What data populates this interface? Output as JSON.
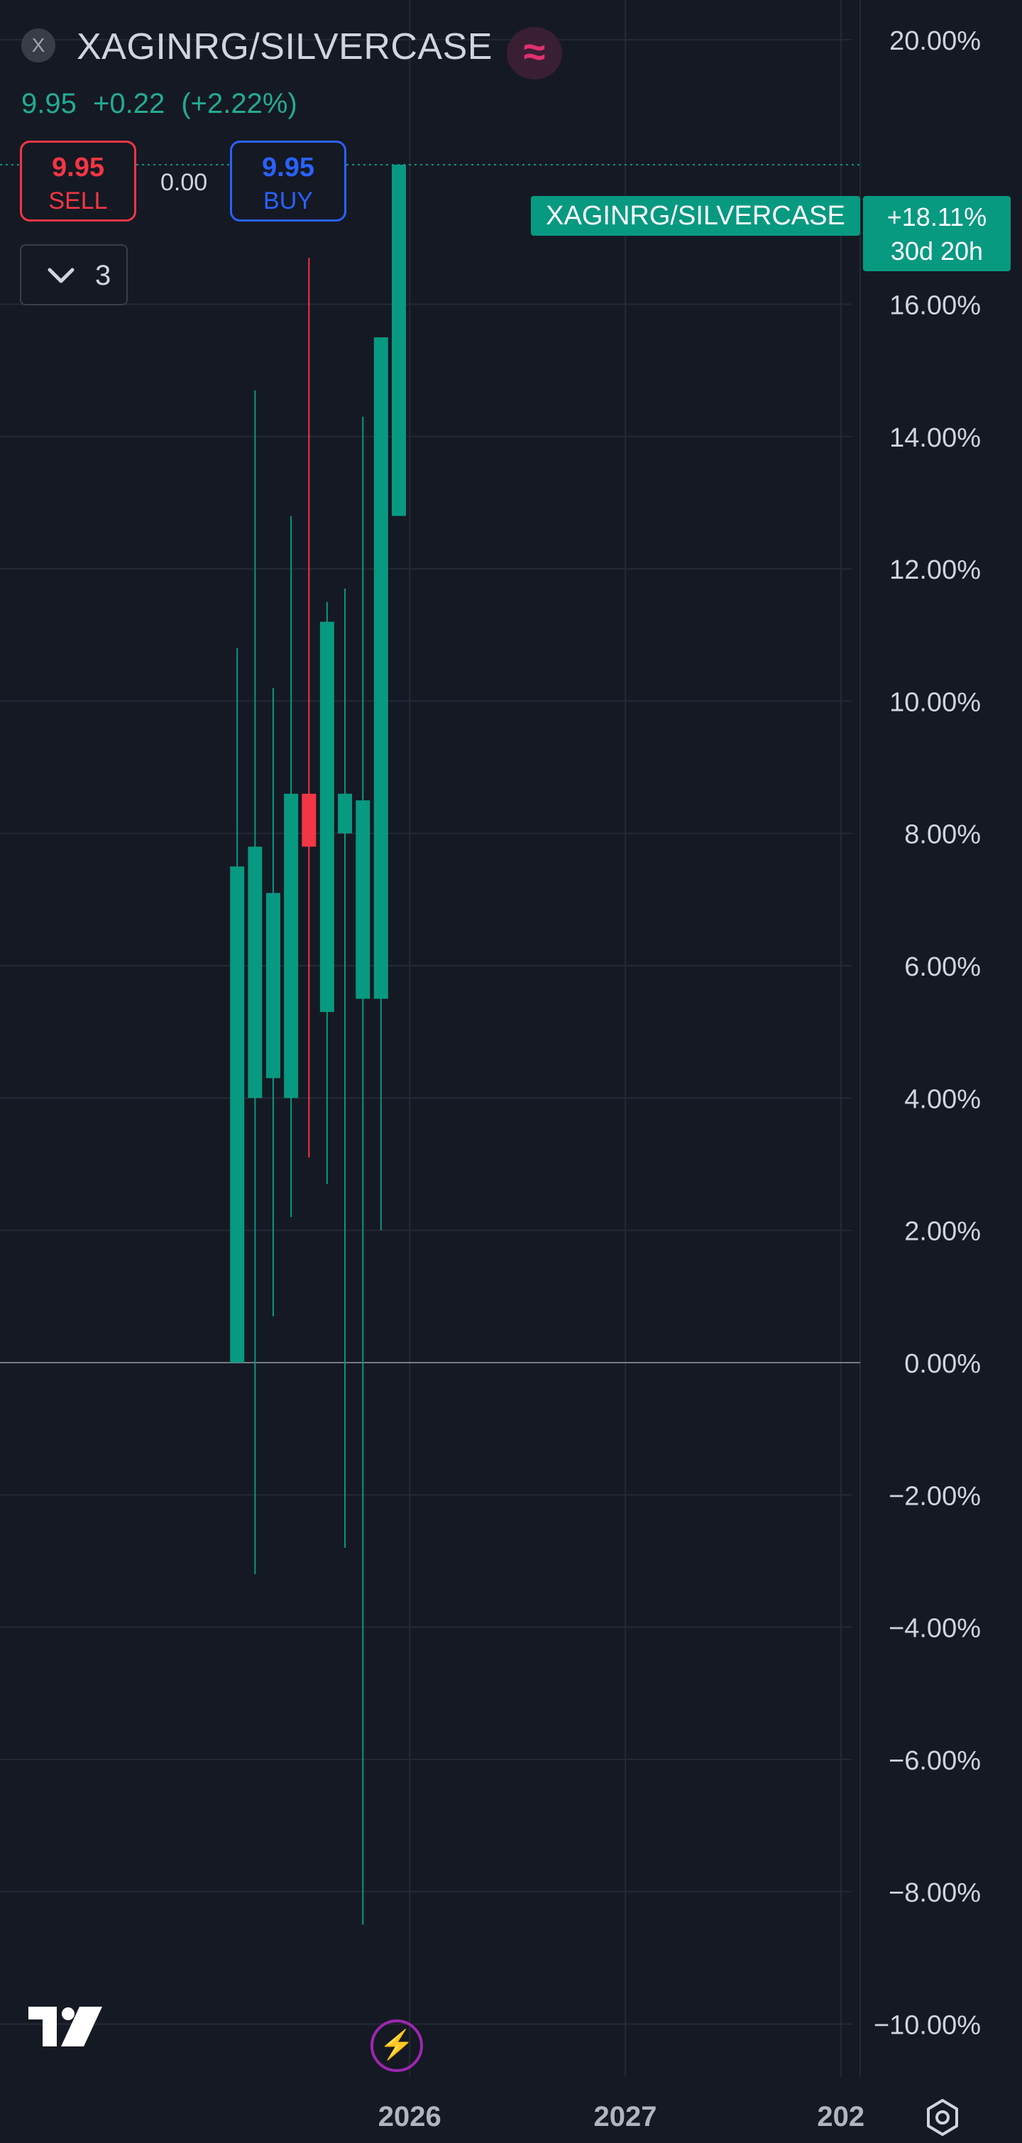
{
  "header": {
    "close_glyph": "X",
    "symbol": "XAGINRG/SILVERCASE",
    "data_glyph": "≈",
    "price": "9.95",
    "change": "+0.22",
    "change_pct": "(+2.22%)"
  },
  "trade": {
    "sell_price": "9.95",
    "sell_label": "SELL",
    "spread": "0.00",
    "buy_price": "9.95",
    "buy_label": "BUY"
  },
  "indicators": {
    "count": "3"
  },
  "price_tags": {
    "symbol": "XAGINRG/SILVERCASE",
    "last_pct": "+18.11%",
    "countdown": "30d 20h"
  },
  "colors": {
    "background": "#151923",
    "up": "#089981",
    "down": "#f23645",
    "grid": "#252935",
    "text": "#d1d4dc"
  },
  "chart_data": {
    "type": "candlestick",
    "y_scale": "percent",
    "ylim": [
      -10.8,
      20.6
    ],
    "y_ticks": [
      "20.00%",
      "16.00%",
      "14.00%",
      "12.00%",
      "10.00%",
      "8.00%",
      "6.00%",
      "4.00%",
      "2.00%",
      "0.00%",
      "−2.00%",
      "−4.00%",
      "−6.00%",
      "−8.00%",
      "−10.00%"
    ],
    "x_ticks": [
      "2026",
      "2027",
      "202"
    ],
    "x_tick_positions_years": [
      2026,
      2027,
      2028
    ],
    "xlim_years": [
      2024.1,
      2028.05
    ],
    "zero_line": 0.0,
    "last_value": 18.11,
    "candles": [
      {
        "t": 2025.2,
        "o": 0.0,
        "h": 10.8,
        "l": 0.0,
        "c": 7.5,
        "dir": "up"
      },
      {
        "t": 2025.283,
        "o": 4.0,
        "h": 14.7,
        "l": -3.2,
        "c": 7.8,
        "dir": "up"
      },
      {
        "t": 2025.367,
        "o": 4.3,
        "h": 10.2,
        "l": 0.7,
        "c": 7.1,
        "dir": "up"
      },
      {
        "t": 2025.45,
        "o": 4.0,
        "h": 12.8,
        "l": 2.2,
        "c": 8.6,
        "dir": "up"
      },
      {
        "t": 2025.533,
        "o": 8.6,
        "h": 16.7,
        "l": 3.1,
        "c": 7.8,
        "dir": "down"
      },
      {
        "t": 2025.617,
        "o": 5.3,
        "h": 11.5,
        "l": 2.7,
        "c": 11.2,
        "dir": "up"
      },
      {
        "t": 2025.7,
        "o": 8.0,
        "h": 11.7,
        "l": -2.8,
        "c": 8.6,
        "dir": "up"
      },
      {
        "t": 2025.783,
        "o": 5.5,
        "h": 14.3,
        "l": -8.5,
        "c": 8.5,
        "dir": "up"
      },
      {
        "t": 2025.867,
        "o": 5.5,
        "h": 15.5,
        "l": 2.0,
        "c": 15.5,
        "dir": "up"
      },
      {
        "t": 2025.95,
        "o": 12.8,
        "h": 18.11,
        "l": 12.8,
        "c": 18.11,
        "dir": "up"
      }
    ]
  }
}
